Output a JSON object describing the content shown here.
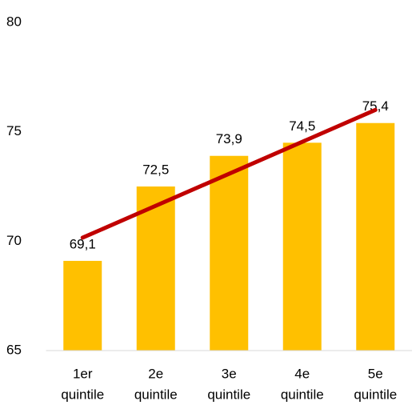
{
  "chart_data": {
    "type": "bar",
    "categories": [
      [
        "1er",
        "quintile"
      ],
      [
        "2e",
        "quintile"
      ],
      [
        "3e",
        "quintile"
      ],
      [
        "4e",
        "quintile"
      ],
      [
        "5e",
        "quintile"
      ]
    ],
    "values": [
      69.1,
      72.5,
      73.9,
      74.5,
      75.4
    ],
    "value_labels": [
      "69,1",
      "72,5",
      "73,9",
      "74,5",
      "75,4"
    ],
    "color": "#ffc000",
    "trendline": {
      "color": "#c00000",
      "values": [
        70.16,
        76.0
      ]
    },
    "ylim": [
      65,
      80
    ],
    "yticks": [
      65,
      70,
      75,
      80
    ],
    "grid": false
  }
}
